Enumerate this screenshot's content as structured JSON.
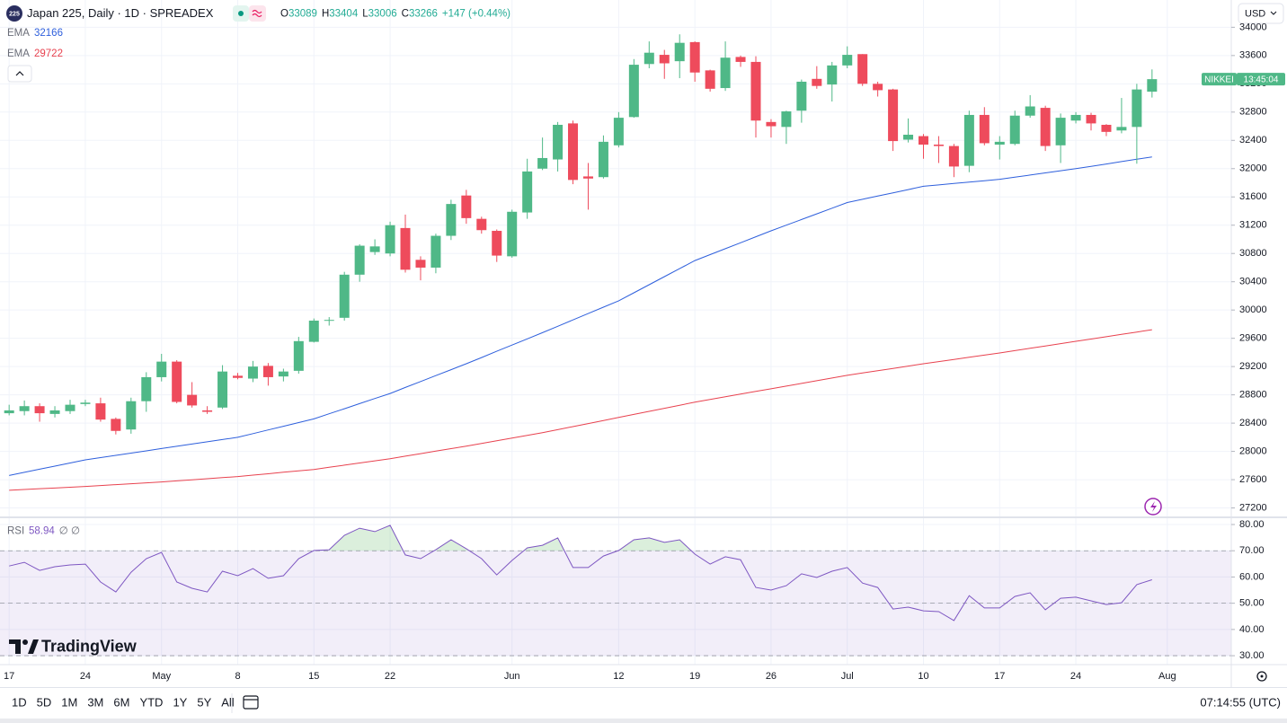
{
  "symbol_icon": "225",
  "currency": "USD",
  "brand": "TradingView",
  "toolbar": {
    "ranges": [
      "1D",
      "5D",
      "1M",
      "3M",
      "6M",
      "YTD",
      "1Y",
      "5Y",
      "All"
    ],
    "clock": "07:14:55 (UTC)"
  },
  "chart_data": [
    {
      "type": "candlestick",
      "title": "Japan 225, Daily · 1D · SPREADEX",
      "ohlc_labels": [
        "O",
        "H",
        "L",
        "C"
      ],
      "change": "+147 (+0.44%)",
      "up_color": "#4fb887",
      "down_color": "#ee4b5c",
      "open": [
        28540,
        28570,
        28640,
        28530,
        28570,
        28670,
        28680,
        28460,
        28310,
        28710,
        29050,
        29270,
        28800,
        28580,
        28620,
        29070,
        29030,
        29210,
        29060,
        29140,
        29550,
        29850,
        29890,
        30500,
        30820,
        30800,
        31160,
        30710,
        30600,
        31050,
        31620,
        31290,
        31120,
        30760,
        31380,
        32000,
        32130,
        32640,
        31890,
        31880,
        32330,
        32730,
        33480,
        33610,
        33520,
        33790,
        33390,
        33140,
        33580,
        33510,
        32660,
        32590,
        32820,
        33270,
        33190,
        33460,
        33620,
        33200,
        33120,
        32410,
        32460,
        32340,
        32320,
        32040,
        32760,
        32340,
        32350,
        32750,
        32860,
        32330,
        32680,
        32760,
        32620,
        32540,
        32590,
        33089
      ],
      "high": [
        28660,
        28720,
        28680,
        28640,
        28730,
        28730,
        28760,
        28480,
        28760,
        29120,
        29380,
        29290,
        28980,
        28640,
        29220,
        29110,
        29280,
        29250,
        29170,
        29620,
        29880,
        29900,
        30540,
        30930,
        31000,
        31250,
        31350,
        30760,
        31080,
        31560,
        31700,
        31320,
        31140,
        31420,
        32140,
        32440,
        32660,
        32680,
        32080,
        32470,
        32800,
        33550,
        33800,
        33680,
        33900,
        33800,
        33400,
        33800,
        33600,
        33590,
        32700,
        32820,
        33260,
        33450,
        33510,
        33730,
        33620,
        33230,
        33130,
        32710,
        32490,
        32460,
        32350,
        32820,
        32870,
        32460,
        32820,
        33040,
        32890,
        32780,
        32800,
        32790,
        32630,
        33000,
        33200,
        33404
      ],
      "low": [
        28510,
        28510,
        28420,
        28480,
        28530,
        28640,
        28420,
        28240,
        28250,
        28560,
        28990,
        28680,
        28620,
        28530,
        28600,
        29020,
        28980,
        28930,
        28990,
        29100,
        29540,
        29780,
        29850,
        30400,
        30780,
        30760,
        30530,
        30420,
        30520,
        30990,
        31220,
        31080,
        30680,
        30740,
        31290,
        31980,
        31960,
        31780,
        31420,
        31860,
        32300,
        32720,
        33420,
        33270,
        33280,
        33230,
        33090,
        33100,
        33440,
        32440,
        32440,
        32350,
        32650,
        33130,
        32950,
        33420,
        33170,
        33020,
        32250,
        32370,
        32140,
        32080,
        31880,
        31950,
        32330,
        32130,
        32330,
        32720,
        32250,
        32080,
        32640,
        32540,
        32460,
        32500,
        32070,
        33006
      ],
      "close": [
        28580,
        28640,
        28540,
        28580,
        28660,
        28690,
        28450,
        28290,
        28710,
        29050,
        29270,
        28700,
        28650,
        28560,
        29130,
        29040,
        29200,
        29050,
        29130,
        29560,
        29850,
        29860,
        30500,
        30910,
        30900,
        31200,
        30570,
        30600,
        31050,
        31500,
        31300,
        31130,
        30770,
        31390,
        31960,
        32150,
        32620,
        31840,
        31860,
        32380,
        32720,
        33470,
        33640,
        33490,
        33780,
        33360,
        33130,
        33570,
        33510,
        32680,
        32600,
        32810,
        33230,
        33170,
        33460,
        33610,
        33200,
        33110,
        32390,
        32480,
        32340,
        32320,
        32030,
        32760,
        32360,
        32380,
        32750,
        32880,
        32320,
        32720,
        32760,
        32640,
        32520,
        32590,
        33120,
        33266
      ],
      "series": [
        {
          "name": "EMA",
          "color": "#2e5fdc",
          "values": [
            27660,
            27704,
            27748,
            27792,
            27836,
            27880,
            27912,
            27944,
            27976,
            28008,
            28040,
            28072,
            28104,
            28136,
            28168,
            28200,
            28252,
            28304,
            28356,
            28408,
            28460,
            28532,
            28604,
            28676,
            28748,
            28820,
            28904,
            28988,
            29072,
            29156,
            29240,
            29328,
            29416,
            29504,
            29592,
            29680,
            29770,
            29860,
            29950,
            30040,
            30130,
            30244,
            30358,
            30472,
            30586,
            30700,
            30784,
            30868,
            30952,
            31036,
            31120,
            31200,
            31280,
            31360,
            31440,
            31520,
            31566,
            31612,
            31658,
            31704,
            31750,
            31770,
            31790,
            31810,
            31830,
            31850,
            31880,
            31910,
            31940,
            31970,
            32000,
            32033,
            32066,
            32100,
            32133,
            32166
          ]
        },
        {
          "name": "EMA",
          "color": "#e8424f",
          "values": [
            27450,
            27461,
            27472,
            27482,
            27493,
            27504,
            27517,
            27530,
            27542,
            27555,
            27568,
            27583,
            27598,
            27614,
            27629,
            27644,
            27664,
            27684,
            27705,
            27725,
            27745,
            27775,
            27806,
            27836,
            27867,
            27897,
            27933,
            27968,
            28004,
            28039,
            28075,
            28113,
            28151,
            28189,
            28227,
            28265,
            28308,
            28351,
            28394,
            28437,
            28480,
            28523,
            28566,
            28610,
            28653,
            28696,
            28734,
            28772,
            28810,
            28848,
            28886,
            28924,
            28962,
            29000,
            29038,
            29076,
            29109,
            29142,
            29174,
            29207,
            29240,
            29271,
            29301,
            29332,
            29362,
            29393,
            29426,
            29459,
            29491,
            29524,
            29557,
            29590,
            29623,
            29656,
            29689,
            29722
          ]
        }
      ],
      "xlim": [
        -0.6,
        80.2
      ],
      "xticks": [
        {
          "value": 0,
          "label": "17"
        },
        {
          "value": 5,
          "label": "24"
        },
        {
          "value": 10,
          "label": "May"
        },
        {
          "value": 15,
          "label": "8"
        },
        {
          "value": 20,
          "label": "15"
        },
        {
          "value": 25,
          "label": "22"
        },
        {
          "value": 33,
          "label": "Jun"
        },
        {
          "value": 40,
          "label": "12"
        },
        {
          "value": 45,
          "label": "19"
        },
        {
          "value": 50,
          "label": "26"
        },
        {
          "value": 55,
          "label": "Jul"
        },
        {
          "value": 60,
          "label": "10"
        },
        {
          "value": 65,
          "label": "17"
        },
        {
          "value": 70,
          "label": "24"
        },
        {
          "value": 76,
          "label": "Aug"
        }
      ],
      "ylim": [
        27080,
        34030
      ],
      "yticks": [
        27200,
        27600,
        28000,
        28400,
        28800,
        29200,
        29600,
        30000,
        30400,
        30800,
        31200,
        31600,
        32000,
        32400,
        32800,
        33200,
        33600,
        34000
      ],
      "grid": true,
      "symbol_label": "NIKKEI",
      "countdown": "13:45:04"
    },
    {
      "type": "line",
      "series": [
        {
          "name": "RSI",
          "color": "#7e57c2",
          "values": [
            64.2,
            65.6,
            62.5,
            63.9,
            64.6,
            64.9,
            58.1,
            54.3,
            61.8,
            67,
            69.4,
            58.1,
            55.7,
            54.3,
            62.2,
            60.5,
            63.2,
            59.5,
            60.5,
            67,
            70.1,
            70.4,
            75.9,
            78.6,
            77.3,
            79.7,
            68.4,
            67,
            70.4,
            74.2,
            70.8,
            67,
            60.8,
            66.3,
            71.1,
            72.1,
            74.9,
            63.6,
            63.6,
            68,
            70.1,
            74.2,
            74.9,
            73.2,
            74.2,
            68.7,
            64.9,
            67.7,
            66.6,
            56,
            55,
            56.7,
            61.2,
            59.8,
            62.2,
            63.6,
            57.7,
            56,
            47.8,
            48.5,
            47.1,
            46.8,
            43.4,
            52.9,
            48.2,
            48.2,
            52.6,
            54,
            47.5,
            51.9,
            52.3,
            50.9,
            49.5,
            50.2,
            57.1,
            58.94
          ]
        }
      ],
      "legend_extra": "∅ ∅",
      "xlim": [
        -0.6,
        80.2
      ],
      "ylim": [
        26.6,
        82.4
      ],
      "yticks": [
        {
          "value": 30,
          "label": "30.00"
        },
        {
          "value": 40,
          "label": "40.00"
        },
        {
          "value": 50,
          "label": "50.00"
        },
        {
          "value": 60,
          "label": "60.00"
        },
        {
          "value": 70,
          "label": "70.00"
        },
        {
          "value": 80,
          "label": "80.00"
        }
      ],
      "levels": [
        70,
        50,
        30
      ],
      "band_color": "#7e57c2",
      "grid": true
    }
  ]
}
